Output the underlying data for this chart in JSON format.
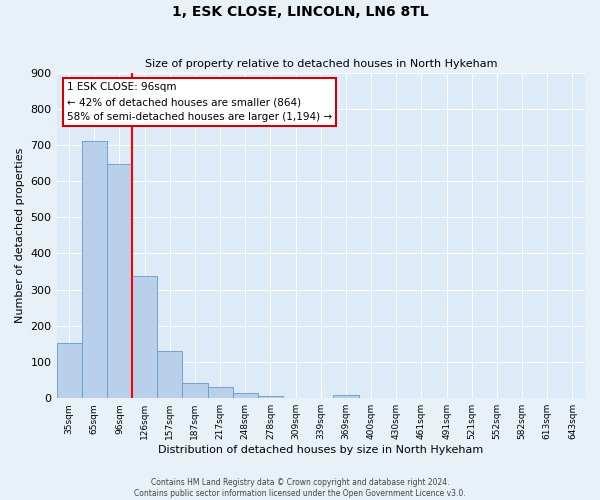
{
  "title": "1, ESK CLOSE, LINCOLN, LN6 8TL",
  "subtitle": "Size of property relative to detached houses in North Hykeham",
  "xlabel": "Distribution of detached houses by size in North Hykeham",
  "ylabel": "Number of detached properties",
  "bin_labels": [
    "35sqm",
    "65sqm",
    "96sqm",
    "126sqm",
    "157sqm",
    "187sqm",
    "217sqm",
    "248sqm",
    "278sqm",
    "309sqm",
    "339sqm",
    "369sqm",
    "400sqm",
    "430sqm",
    "461sqm",
    "491sqm",
    "521sqm",
    "552sqm",
    "582sqm",
    "613sqm",
    "643sqm"
  ],
  "bar_values": [
    152,
    712,
    648,
    338,
    130,
    43,
    32,
    15,
    5,
    0,
    0,
    10,
    0,
    0,
    0,
    0,
    0,
    0,
    0,
    0,
    0
  ],
  "bar_color": "#b8d0ea",
  "bar_edge_color": "#6699cc",
  "property_line_label": "1 ESK CLOSE: 96sqm",
  "annotation_line1": "← 42% of detached houses are smaller (864)",
  "annotation_line2": "58% of semi-detached houses are larger (1,194) →",
  "box_edge_color": "#cc0000",
  "ylim": [
    0,
    900
  ],
  "yticks": [
    0,
    100,
    200,
    300,
    400,
    500,
    600,
    700,
    800,
    900
  ],
  "footer_line1": "Contains HM Land Registry data © Crown copyright and database right 2024.",
  "footer_line2": "Contains public sector information licensed under the Open Government Licence v3.0.",
  "fig_background_color": "#e8f0f8",
  "ax_background_color": "#ddeaf7",
  "grid_color": "#ffffff",
  "property_bar_index": 2
}
